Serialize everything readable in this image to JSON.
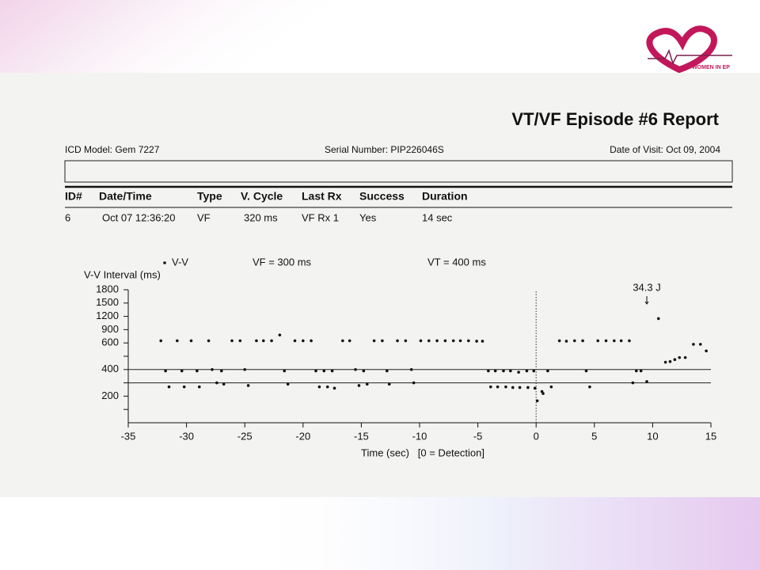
{
  "logo": {
    "text": "WOMEN IN EP"
  },
  "report": {
    "title": "VT/VF Episode #6 Report",
    "model": "ICD Model: Gem 7227",
    "serial": "Serial Number: PIP226046S",
    "visit": "Date of Visit: Oct 09, 2004",
    "table": {
      "header": [
        "ID#",
        "Date/Time",
        "Type",
        "V. Cycle",
        "Last Rx",
        "Success",
        "Duration"
      ],
      "rows": [
        [
          "6",
          "Oct 07 12:36:20",
          "VF",
          "320 ms",
          "VF Rx 1",
          "Yes",
          "14 sec"
        ]
      ]
    }
  },
  "chart_data": {
    "type": "scatter",
    "y_label": "V-V Interval (ms)",
    "x_label": "Time (sec)   [0 = Detection]",
    "xlim": [
      -35,
      15
    ],
    "xticks": [
      -35,
      -30,
      -25,
      -20,
      -15,
      -10,
      -5,
      0,
      5,
      10,
      15
    ],
    "ylim": [
      0,
      1800
    ],
    "yticks": [
      {
        "value": 100,
        "label": null
      },
      200,
      {
        "value": 300,
        "label": null
      },
      400,
      {
        "value": 500,
        "label": null
      },
      600,
      900,
      1200,
      1500,
      1800
    ],
    "thresholds": [
      {
        "label": "VF = 300 ms",
        "value": 300
      },
      {
        "label": "VT = 400 ms",
        "value": 400
      }
    ],
    "detection_x": 0,
    "annotations": [
      {
        "text": "34.3 J",
        "x": 9.5
      }
    ],
    "x": [
      -32.2,
      -30.8,
      -29.6,
      -28.1,
      -26.1,
      -25.4,
      -24.0,
      -23.4,
      -22.7,
      -22.0,
      -20.7,
      -20.0,
      -19.3,
      -16.6,
      -16.0,
      -13.9,
      -13.2,
      -11.9,
      -11.2,
      -9.9,
      -9.2,
      -8.5,
      -7.8,
      -7.1,
      -6.5,
      -5.8,
      -5.1,
      -4.6,
      2.0,
      2.6,
      3.3,
      4.0,
      5.3,
      6.0,
      6.7,
      7.3,
      8.0,
      -31.8,
      -30.4,
      -29.1,
      -27.8,
      -27.0,
      -25.0,
      -21.6,
      -18.9,
      -18.2,
      -17.5,
      -15.5,
      -14.8,
      -12.8,
      -10.7,
      -4.1,
      -3.5,
      -2.8,
      -2.2,
      -1.5,
      -0.8,
      -0.2,
      1.0,
      4.3,
      8.6,
      9.0,
      -31.5,
      -30.2,
      -28.9,
      -27.4,
      -26.8,
      -24.7,
      -21.3,
      -18.6,
      -17.9,
      -17.3,
      -15.2,
      -14.5,
      -12.6,
      -10.5,
      -3.9,
      -3.3,
      -2.6,
      -2.0,
      -1.4,
      -0.7,
      1.3,
      4.6,
      -0.1,
      0.5,
      0.1,
      0.6,
      8.3,
      9.5,
      10.5,
      11.1,
      11.5,
      11.9,
      12.3,
      12.8,
      13.5,
      14.1,
      14.6
    ],
    "series": [
      {
        "name": "V-V",
        "color": "#111111",
        "values": [
          650,
          650,
          650,
          650,
          650,
          650,
          650,
          650,
          650,
          780,
          650,
          650,
          650,
          650,
          650,
          650,
          650,
          650,
          650,
          650,
          650,
          650,
          650,
          650,
          650,
          650,
          640,
          640,
          650,
          640,
          650,
          650,
          650,
          650,
          650,
          650,
          650,
          390,
          390,
          390,
          400,
          390,
          400,
          390,
          390,
          390,
          390,
          400,
          390,
          390,
          400,
          390,
          390,
          390,
          390,
          380,
          390,
          390,
          390,
          390,
          390,
          390,
          270,
          270,
          270,
          300,
          290,
          280,
          290,
          270,
          270,
          260,
          280,
          290,
          290,
          300,
          270,
          270,
          270,
          265,
          265,
          265,
          270,
          270,
          260,
          235,
          165,
          220,
          300,
          310,
          1150,
          455,
          460,
          475,
          490,
          490,
          590,
          590,
          540
        ]
      }
    ]
  }
}
